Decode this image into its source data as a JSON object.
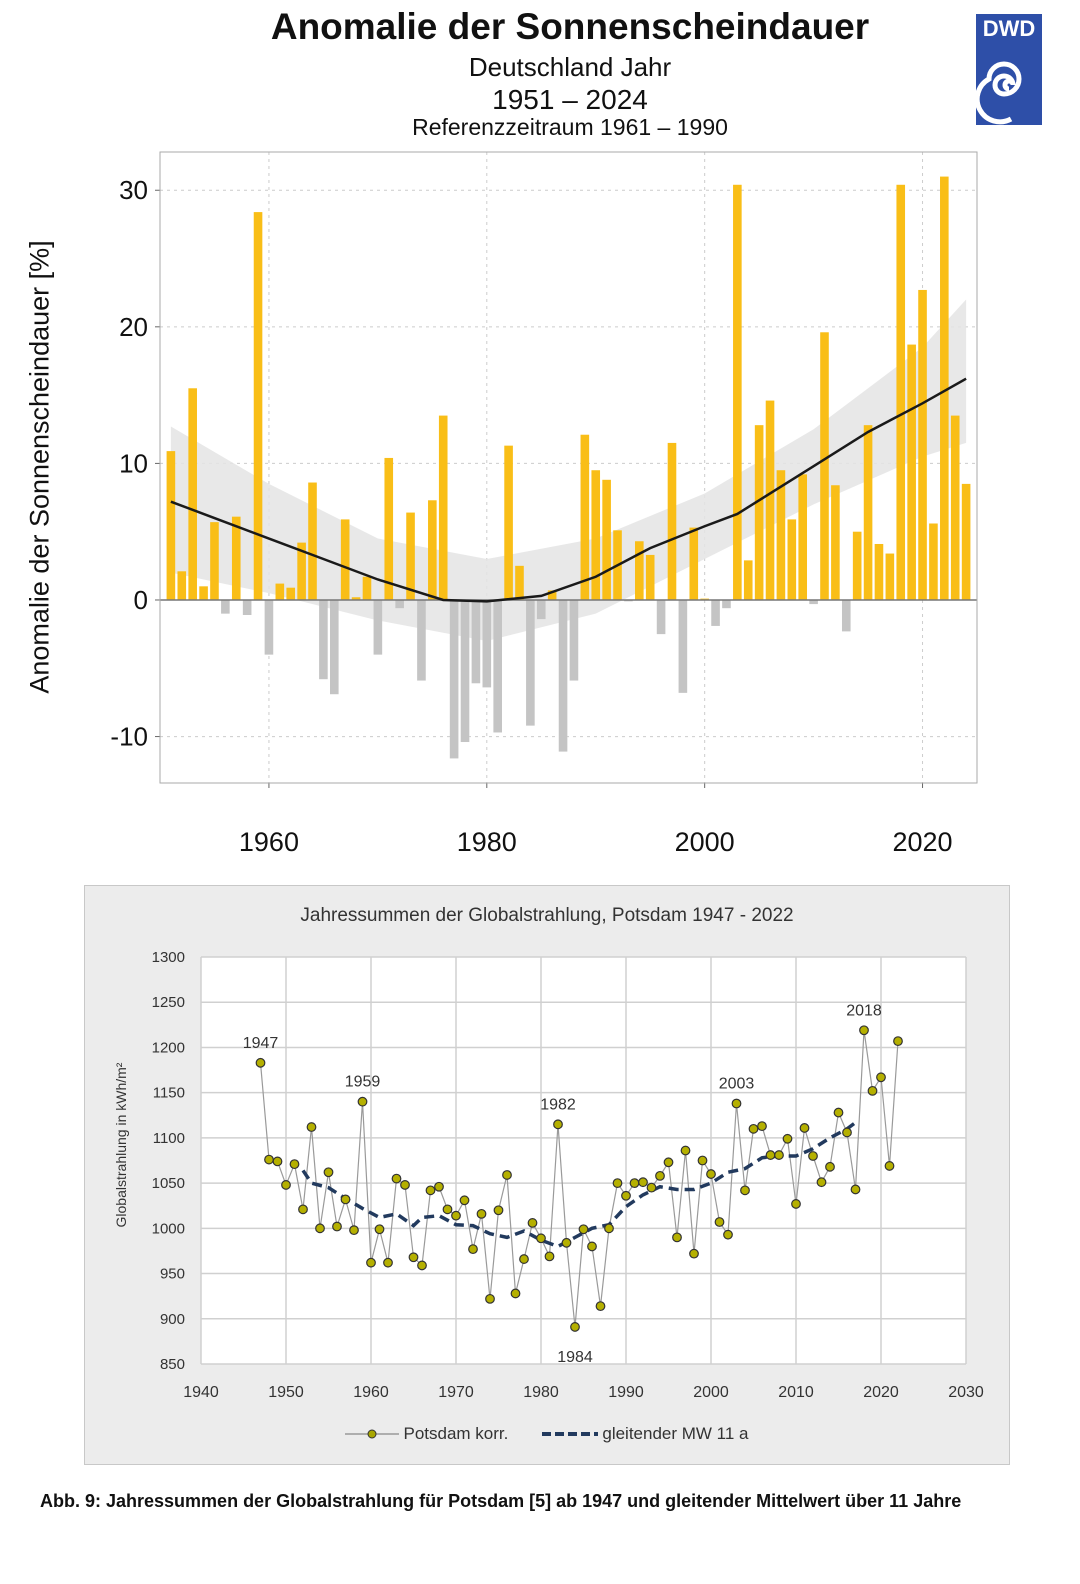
{
  "header": {
    "title": "Anomalie der Sonnenscheindauer",
    "subtitle": "Deutschland Jahr",
    "period": "1951 – 2024",
    "reference": "Referenzzeitraum 1961 – 1990",
    "logo_text": "DWD"
  },
  "colors": {
    "positive": "#f9be17",
    "negative": "#c4c4c4",
    "trend": "#1a1a1a",
    "band": "#e4e4e4",
    "logo": "#2e4fa8",
    "points": "#8a8a00",
    "moving_avg": "#223a5e"
  },
  "chart_data": [
    {
      "type": "bar",
      "title": "Anomalie der Sonnenscheindauer",
      "ylabel": "Anomalie der Sonnenscheindauer [%]",
      "xlim": [
        1950,
        2025
      ],
      "ylim": [
        -13.4,
        32.8
      ],
      "xticks": [
        1960,
        1980,
        2000,
        2020
      ],
      "yticks": [
        -10,
        0,
        10,
        20,
        30
      ],
      "grid": true,
      "x_start": 1951,
      "values": [
        10.9,
        2.1,
        15.5,
        1.0,
        5.7,
        -1.0,
        6.1,
        -1.1,
        28.4,
        -4.0,
        1.2,
        0.9,
        4.2,
        8.6,
        -5.8,
        -6.9,
        5.9,
        0.2,
        1.7,
        -4.0,
        10.4,
        -0.6,
        6.4,
        -5.9,
        7.3,
        13.5,
        -11.6,
        -10.4,
        -6.1,
        -6.4,
        -9.7,
        11.3,
        2.5,
        -9.2,
        -1.4,
        0.7,
        -11.1,
        -5.9,
        12.1,
        9.5,
        8.8,
        5.1,
        -0.1,
        4.3,
        3.3,
        -2.5,
        11.5,
        -6.8,
        5.3,
        0.1,
        -1.9,
        -0.6,
        30.4,
        2.9,
        12.8,
        14.6,
        9.5,
        5.9,
        9.2,
        -0.3,
        19.6,
        8.4,
        -2.3,
        5.0,
        12.8,
        4.1,
        3.4,
        30.4,
        18.7,
        22.7,
        5.6,
        31.0,
        13.5,
        8.5
      ],
      "trend": {
        "x": [
          1951,
          1955,
          1960,
          1965,
          1970,
          1976,
          1980,
          1985,
          1990,
          1995,
          2000,
          2003,
          2010,
          2015,
          2020,
          2024
        ],
        "y": [
          7.2,
          6.0,
          4.5,
          3.0,
          1.5,
          0.0,
          -0.1,
          0.3,
          1.7,
          3.8,
          5.4,
          6.3,
          9.8,
          12.3,
          14.4,
          16.2
        ]
      },
      "band": {
        "x": [
          1951,
          1960,
          1970,
          1980,
          1990,
          2000,
          2010,
          2020,
          2024
        ],
        "upper": [
          12.7,
          8.5,
          4.5,
          3.0,
          4.5,
          7.8,
          12.5,
          18.5,
          22.0
        ],
        "lower": [
          2.0,
          0.5,
          -1.5,
          -3.0,
          -1.0,
          3.0,
          7.0,
          10.5,
          11.5
        ]
      }
    },
    {
      "type": "line",
      "title": "Jahressummen der Globalstrahlung, Potsdam 1947 - 2022",
      "ylabel": "Globalstrahlung in kWh/m²",
      "xlim": [
        1940,
        2030
      ],
      "ylim": [
        850,
        1300
      ],
      "xticks": [
        1940,
        1950,
        1960,
        1970,
        1980,
        1990,
        2000,
        2010,
        2020,
        2030
      ],
      "yticks": [
        850,
        900,
        950,
        1000,
        1050,
        1100,
        1150,
        1200,
        1250,
        1300
      ],
      "grid": true,
      "legend_placement": "bottom",
      "series": [
        {
          "name": "Potsdam korr.",
          "x_start": 1947,
          "values": [
            1183,
            1076,
            1074,
            1048,
            1071,
            1021,
            1112,
            1000,
            1062,
            1002,
            1032,
            998,
            1140,
            962,
            999,
            962,
            1055,
            1048,
            968,
            959,
            1042,
            1046,
            1021,
            1014,
            1031,
            977,
            1016,
            922,
            1020,
            1059,
            928,
            966,
            1006,
            989,
            969,
            1115,
            984,
            891,
            999,
            980,
            914,
            1000,
            1050,
            1036,
            1050,
            1051,
            1045,
            1058,
            1073,
            990,
            1086,
            972,
            1075,
            1060,
            1007,
            993,
            1138,
            1042,
            1110,
            1113,
            1081,
            1081,
            1099,
            1027,
            1111,
            1080,
            1051,
            1068,
            1128,
            1106,
            1043,
            1219,
            1152,
            1167,
            1069,
            1207
          ]
        },
        {
          "name": "gleitender MW 11 a",
          "x": [
            1952,
            1953,
            1955,
            1957,
            1959,
            1961,
            1963,
            1965,
            1966,
            1968,
            1970,
            1972,
            1974,
            1976,
            1978,
            1980,
            1982,
            1984,
            1986,
            1988,
            1990,
            1992,
            1994,
            1996,
            1998,
            2000,
            2002,
            2004,
            2006,
            2008,
            2010,
            2012,
            2014,
            2016,
            2017
          ],
          "values": [
            1064,
            1050,
            1045,
            1033,
            1022,
            1012,
            1016,
            1003,
            1012,
            1014,
            1004,
            1003,
            994,
            990,
            997,
            987,
            980,
            990,
            1000,
            1004,
            1024,
            1037,
            1046,
            1043,
            1043,
            1050,
            1062,
            1066,
            1078,
            1080,
            1080,
            1088,
            1100,
            1110,
            1117
          ]
        }
      ],
      "annotations": [
        {
          "label": "1947",
          "x": 1947,
          "y": 1183
        },
        {
          "label": "1959",
          "x": 1959,
          "y": 1140
        },
        {
          "label": "1982",
          "x": 1982,
          "y": 1115
        },
        {
          "label": "1984",
          "x": 1984,
          "y": 891
        },
        {
          "label": "2003",
          "x": 2003,
          "y": 1138
        },
        {
          "label": "2018",
          "x": 2018,
          "y": 1219
        }
      ]
    }
  ],
  "caption": "Abb. 9: Jahressummen der Globalstrahlung für Potsdam [5] ab 1947 und gleitender Mittelwert über 11 Jahre"
}
